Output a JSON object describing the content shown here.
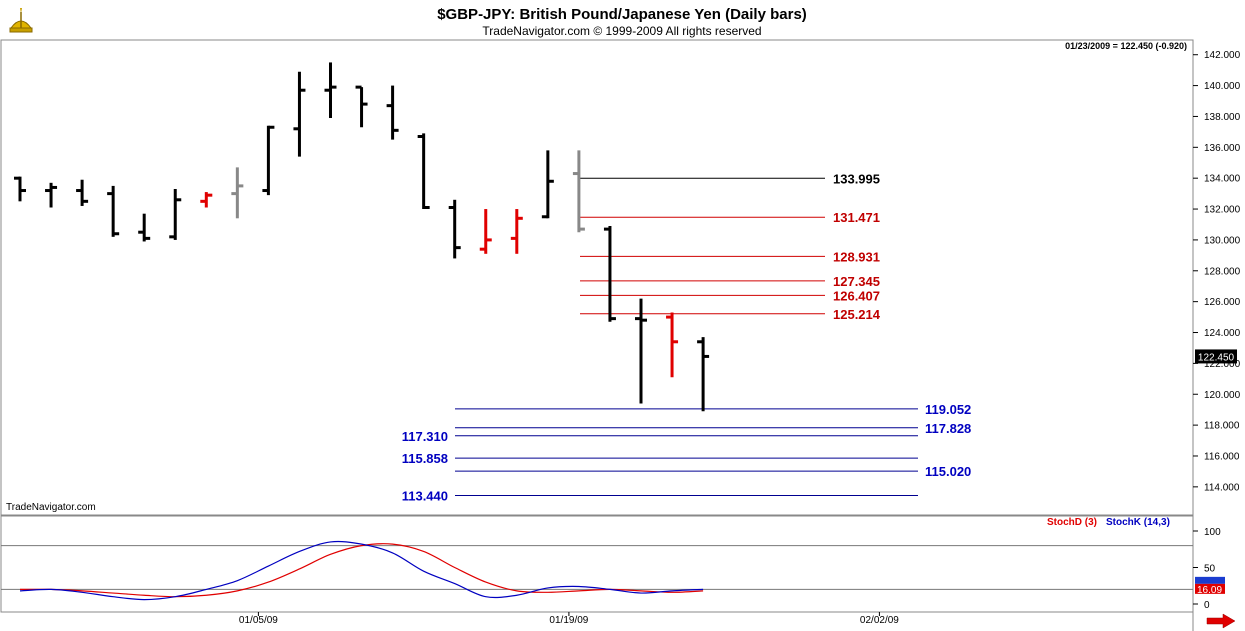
{
  "header": {
    "title": "$GBP-JPY:  British Pound/Japanese Yen  (Daily bars)",
    "subtitle": "TradeNavigator.com © 1999-2009 All rights reserved",
    "quote": "01/23/2009 = 122.450 (-0.920)",
    "watermark": "TradeNavigator.com"
  },
  "colors": {
    "up": "#000000",
    "down_red": "#e00000",
    "gray": "#888888",
    "res_line_black": "#000000",
    "res_line_red": "#d00000",
    "support_line": "#000090",
    "stoch_d": "#e00000",
    "stoch_k": "#0000c0",
    "last_price_bg": "#000000"
  },
  "icons": {
    "logo": "sextant-icon",
    "scroll": "right-arrow-icon"
  },
  "chart_data": [
    {
      "type": "ohlc",
      "title": "$GBP-JPY:  British Pound/Japanese Yen  (Daily bars)",
      "ylim": [
        112.5,
        142.5
      ],
      "y_ticks": [
        "142.000",
        "140.000",
        "138.000",
        "136.000",
        "134.000",
        "132.000",
        "130.000",
        "128.000",
        "126.000",
        "124.000",
        "122.000",
        "120.000",
        "118.000",
        "116.000",
        "114.000"
      ],
      "x_ticks": [
        {
          "label": "01/05/09",
          "bar": 8
        },
        {
          "label": "01/19/09",
          "bar": 18
        },
        {
          "label": "02/02/09",
          "bar": 28
        }
      ],
      "last_price_label": "122.450",
      "bars": [
        {
          "o": 134.0,
          "h": 134.1,
          "l": 132.5,
          "c": 133.2,
          "color": "black"
        },
        {
          "o": 133.2,
          "h": 133.7,
          "l": 132.1,
          "c": 133.4,
          "color": "black"
        },
        {
          "o": 133.2,
          "h": 133.9,
          "l": 132.2,
          "c": 132.5,
          "color": "black"
        },
        {
          "o": 133.0,
          "h": 133.5,
          "l": 130.2,
          "c": 130.4,
          "color": "black"
        },
        {
          "o": 130.5,
          "h": 131.7,
          "l": 129.9,
          "c": 130.1,
          "color": "black"
        },
        {
          "o": 130.2,
          "h": 133.3,
          "l": 130.0,
          "c": 132.6,
          "color": "black"
        },
        {
          "o": 132.5,
          "h": 133.1,
          "l": 132.1,
          "c": 132.9,
          "color": "red"
        },
        {
          "o": 133.0,
          "h": 134.7,
          "l": 131.4,
          "c": 133.5,
          "color": "gray"
        },
        {
          "o": 133.2,
          "h": 137.4,
          "l": 132.9,
          "c": 137.3,
          "color": "black"
        },
        {
          "o": 137.2,
          "h": 140.9,
          "l": 135.4,
          "c": 139.7,
          "color": "black"
        },
        {
          "o": 139.7,
          "h": 141.5,
          "l": 137.9,
          "c": 139.9,
          "color": "black"
        },
        {
          "o": 139.9,
          "h": 139.9,
          "l": 137.3,
          "c": 138.8,
          "color": "black"
        },
        {
          "o": 138.7,
          "h": 140.0,
          "l": 136.5,
          "c": 137.1,
          "color": "black"
        },
        {
          "o": 136.7,
          "h": 136.9,
          "l": 132.0,
          "c": 132.1,
          "color": "black"
        },
        {
          "o": 132.1,
          "h": 132.6,
          "l": 128.8,
          "c": 129.5,
          "color": "black"
        },
        {
          "o": 129.4,
          "h": 132.0,
          "l": 129.1,
          "c": 130.0,
          "color": "red"
        },
        {
          "o": 130.1,
          "h": 132.0,
          "l": 129.1,
          "c": 131.4,
          "color": "red"
        },
        {
          "o": 131.5,
          "h": 135.8,
          "l": 131.4,
          "c": 133.8,
          "color": "black"
        },
        {
          "o": 134.3,
          "h": 135.8,
          "l": 130.5,
          "c": 130.7,
          "color": "gray"
        },
        {
          "o": 130.7,
          "h": 130.9,
          "l": 124.7,
          "c": 124.9,
          "color": "black"
        },
        {
          "o": 124.9,
          "h": 126.2,
          "l": 119.4,
          "c": 124.8,
          "color": "black"
        },
        {
          "o": 125.0,
          "h": 125.3,
          "l": 121.1,
          "c": 123.4,
          "color": "red"
        },
        {
          "o": 123.4,
          "h": 123.7,
          "l": 118.9,
          "c": 122.45,
          "color": "black"
        }
      ],
      "resistance_levels": [
        {
          "label": "133.995",
          "value": 133.995,
          "color": "black"
        },
        {
          "label": "131.471",
          "value": 131.471,
          "color": "red"
        },
        {
          "label": "128.931",
          "value": 128.931,
          "color": "red"
        },
        {
          "label": "127.345",
          "value": 127.345,
          "color": "red"
        },
        {
          "label": "126.407",
          "value": 126.407,
          "color": "red"
        },
        {
          "label": "125.214",
          "value": 125.214,
          "color": "red"
        }
      ],
      "support_levels": [
        {
          "label": "119.052",
          "value": 119.052,
          "label_side": "right"
        },
        {
          "label": "117.828",
          "value": 117.828,
          "label_side": "right"
        },
        {
          "label": "117.310",
          "value": 117.31,
          "label_side": "left"
        },
        {
          "label": "115.858",
          "value": 115.858,
          "label_side": "left"
        },
        {
          "label": "115.020",
          "value": 115.02,
          "label_side": "right"
        },
        {
          "label": "113.440",
          "value": 113.44,
          "label_side": "left"
        }
      ]
    },
    {
      "type": "line",
      "ylim": [
        0,
        100
      ],
      "y_ticks": [
        "100",
        "50",
        "0"
      ],
      "ref_lines": [
        80,
        20
      ],
      "last_value_label": "16.09",
      "series": [
        {
          "name": "StochD (3)",
          "color": "red",
          "values": [
            20,
            20,
            18,
            15,
            12,
            10,
            12,
            18,
            30,
            48,
            68,
            80,
            82,
            72,
            50,
            30,
            18,
            16,
            18,
            20,
            18,
            16,
            18
          ]
        },
        {
          "name": "StochK (14,3)",
          "color": "blue",
          "values": [
            18,
            20,
            16,
            10,
            6,
            10,
            20,
            32,
            52,
            72,
            85,
            82,
            70,
            45,
            28,
            10,
            12,
            22,
            24,
            20,
            15,
            18,
            20
          ]
        }
      ]
    }
  ]
}
